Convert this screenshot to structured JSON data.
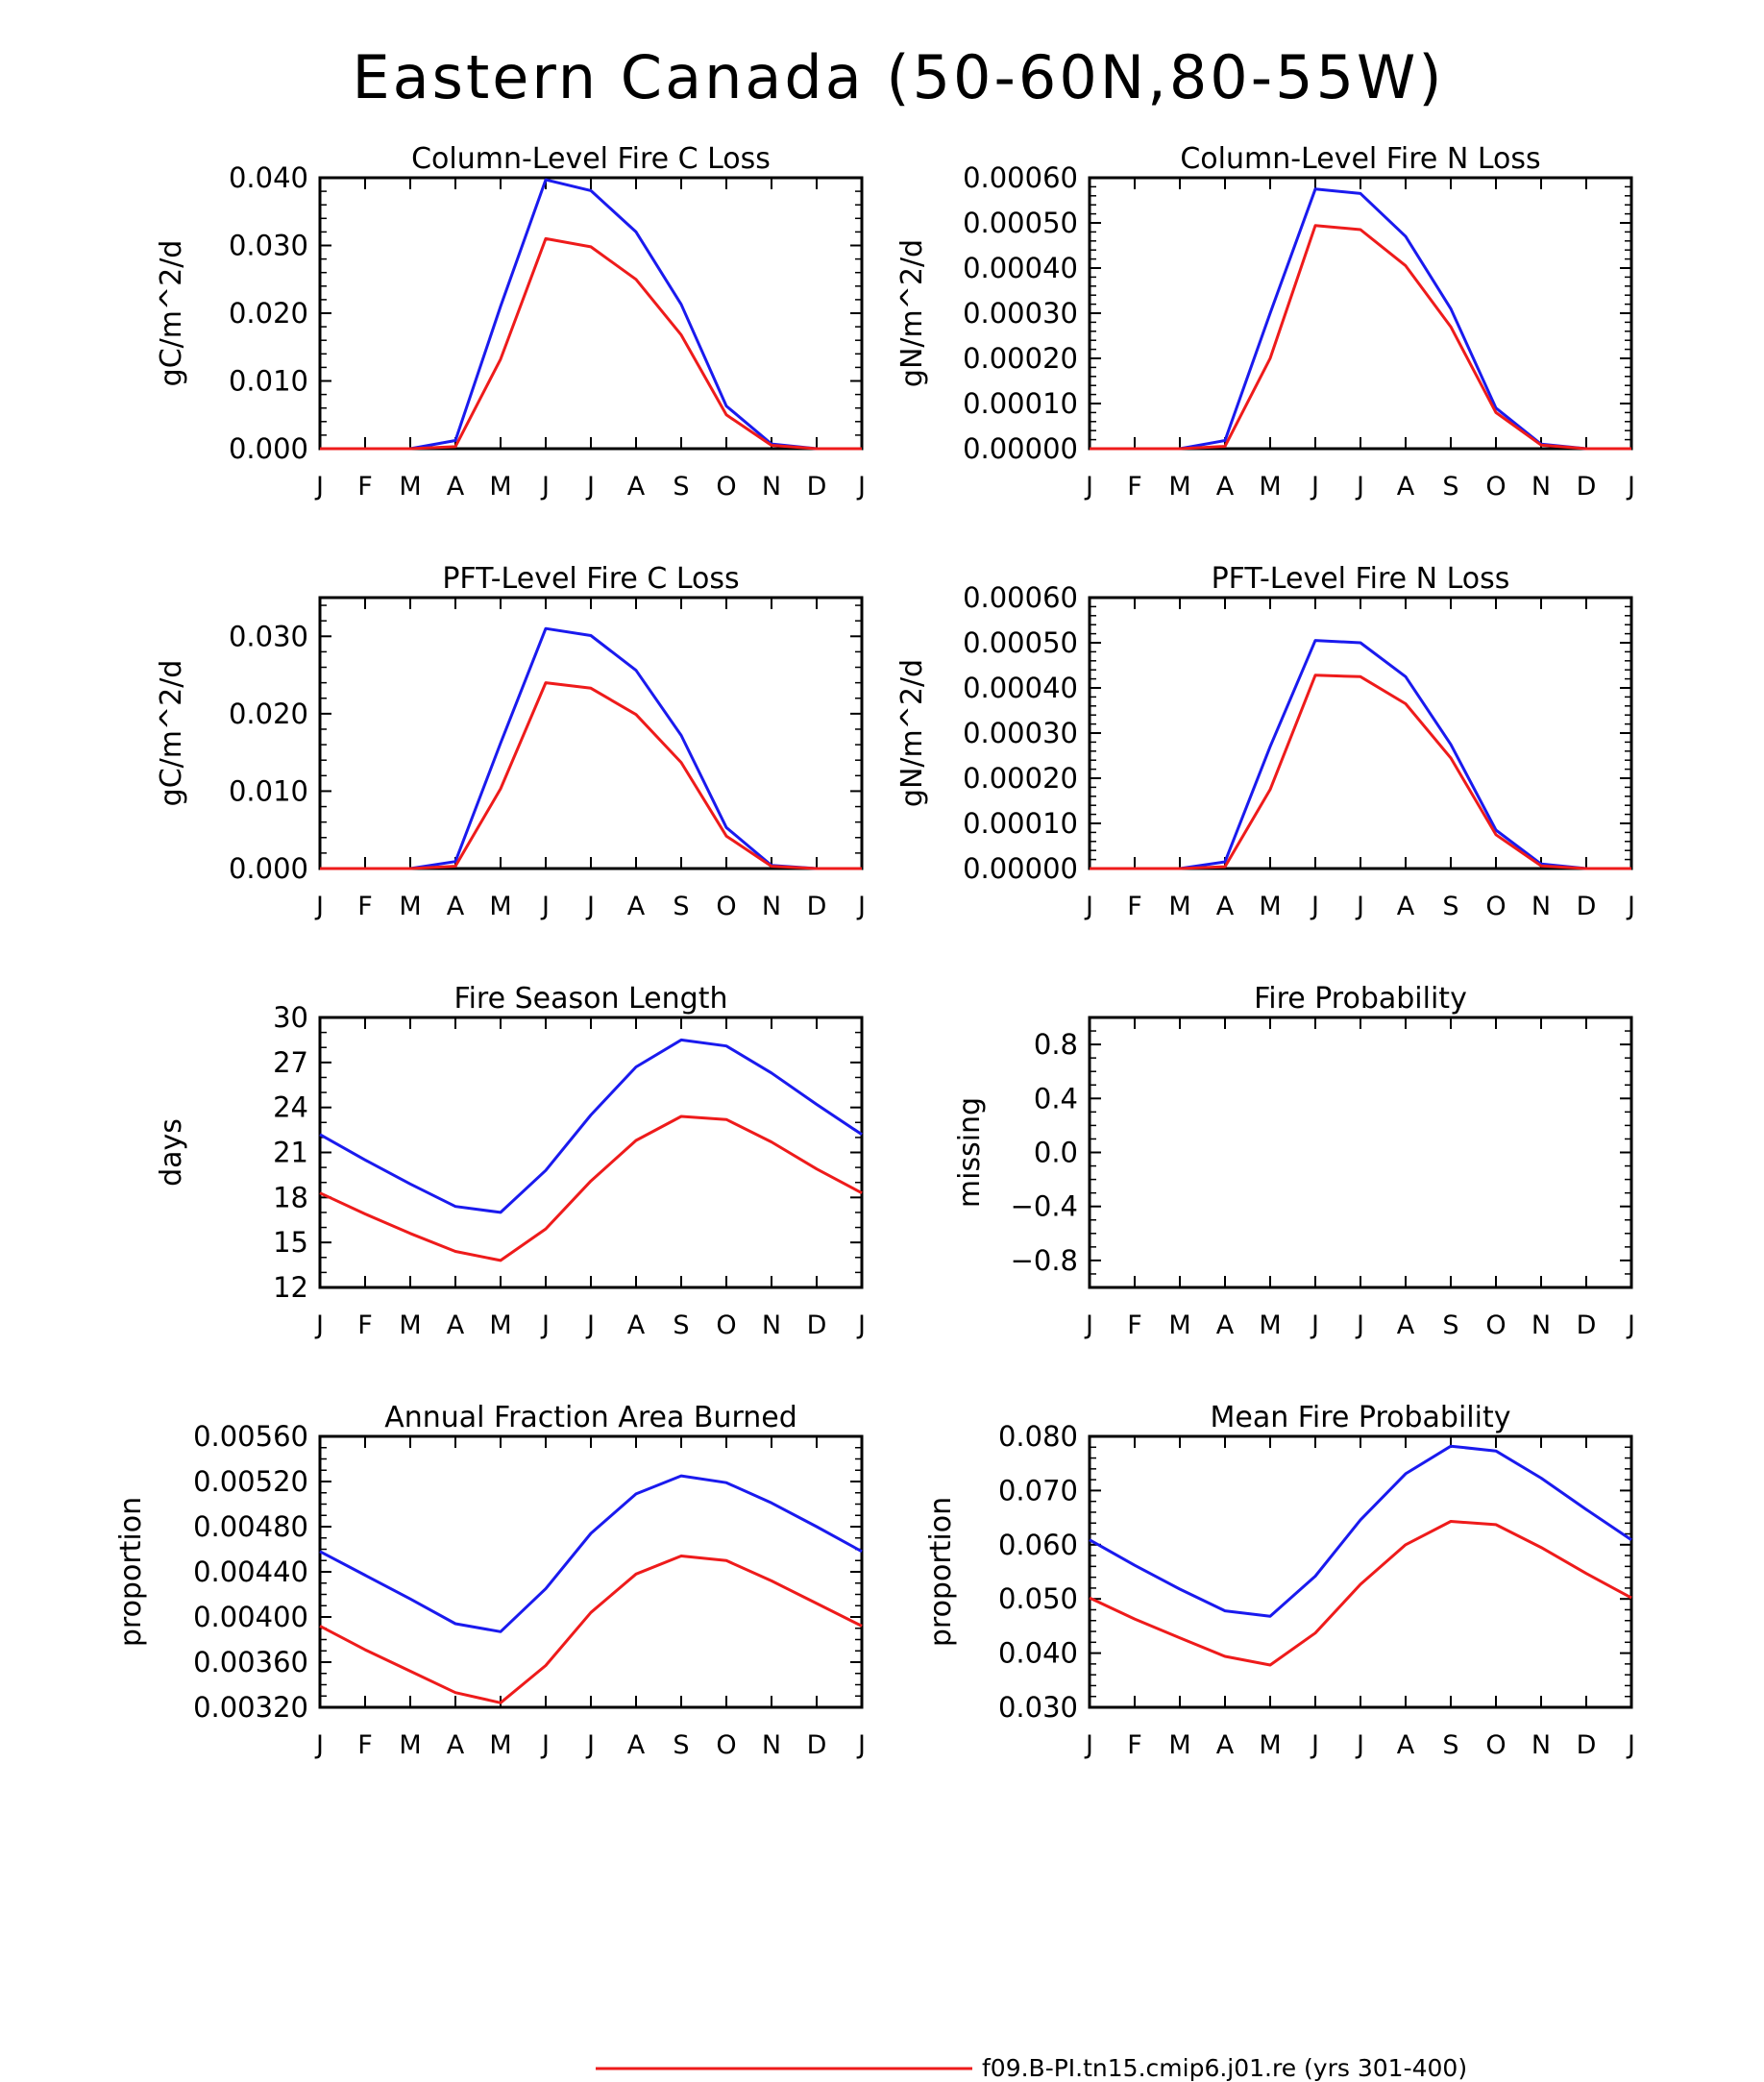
{
  "figure": {
    "title": "Eastern Canada (50-60N,80-55W)"
  },
  "legend": [
    {
      "label": "f09.B-PI.tn15.cmip6.j01.re (yrs 301-400)",
      "color": "#ee1b1b"
    }
  ],
  "colors": {
    "series_red": "#ee1b1b",
    "series_blue": "#1a1aee"
  },
  "chart_data": [
    {
      "id": "col-c",
      "type": "line",
      "title": "Column-Level Fire C Loss",
      "ylabel": "gC/m^2/d",
      "xlabel": "",
      "ylim": [
        0,
        0.04
      ],
      "yticks": [
        0,
        0.01,
        0.02,
        0.03,
        0.04
      ],
      "ytick_labels": [
        "0.000",
        "0.010",
        "0.020",
        "0.030",
        "0.040"
      ],
      "minor_per_major": 5,
      "categories": [
        "J",
        "F",
        "M",
        "A",
        "M",
        "J",
        "J",
        "A",
        "S",
        "O",
        "N",
        "D",
        "J"
      ],
      "series": [
        {
          "color": "#1a1aee",
          "values": [
            0,
            0,
            0,
            0.0012,
            0.021,
            0.0397,
            0.0381,
            0.032,
            0.0213,
            0.0063,
            0.0007,
            0,
            0
          ]
        },
        {
          "color": "#ee1b1b",
          "values": [
            0,
            0,
            0,
            0.0003,
            0.0132,
            0.031,
            0.0298,
            0.025,
            0.0168,
            0.005,
            0.0005,
            0,
            0
          ]
        }
      ]
    },
    {
      "id": "col-n",
      "type": "line",
      "title": "Column-Level Fire N Loss",
      "ylabel": "gN/m^2/d",
      "xlabel": "",
      "ylim": [
        0,
        0.0006
      ],
      "yticks": [
        0,
        0.0001,
        0.0002,
        0.0003,
        0.0004,
        0.0005,
        0.0006
      ],
      "ytick_labels": [
        "0.00000",
        "0.00010",
        "0.00020",
        "0.00030",
        "0.00040",
        "0.00050",
        "0.00060"
      ],
      "minor_per_major": 5,
      "categories": [
        "J",
        "F",
        "M",
        "A",
        "M",
        "J",
        "J",
        "A",
        "S",
        "O",
        "N",
        "D",
        "J"
      ],
      "series": [
        {
          "color": "#1a1aee",
          "values": [
            0,
            0,
            0,
            1.8e-05,
            0.0003,
            0.000575,
            0.000565,
            0.00047,
            0.00031,
            9e-05,
            1e-05,
            0,
            0
          ]
        },
        {
          "color": "#ee1b1b",
          "values": [
            0,
            0,
            0,
            5e-06,
            0.0002,
            0.000494,
            0.000485,
            0.000405,
            0.00027,
            8e-05,
            8e-06,
            0,
            0
          ]
        }
      ]
    },
    {
      "id": "pft-c",
      "type": "line",
      "title": "PFT-Level Fire C Loss",
      "ylabel": "gC/m^2/d",
      "xlabel": "",
      "ylim": [
        0,
        0.035
      ],
      "yticks": [
        0,
        0.01,
        0.02,
        0.03
      ],
      "ytick_labels": [
        "0.000",
        "0.010",
        "0.020",
        "0.030"
      ],
      "minor_per_major": 5,
      "categories": [
        "J",
        "F",
        "M",
        "A",
        "M",
        "J",
        "J",
        "A",
        "S",
        "O",
        "N",
        "D",
        "J"
      ],
      "series": [
        {
          "color": "#1a1aee",
          "values": [
            0,
            0,
            0,
            0.0009,
            0.0162,
            0.031,
            0.0301,
            0.0256,
            0.0172,
            0.0053,
            0.0004,
            0,
            0
          ]
        },
        {
          "color": "#ee1b1b",
          "values": [
            0,
            0,
            0,
            0.0003,
            0.0103,
            0.024,
            0.0233,
            0.0199,
            0.0137,
            0.0042,
            0.0003,
            0,
            0
          ]
        }
      ]
    },
    {
      "id": "pft-n",
      "type": "line",
      "title": "PFT-Level Fire N Loss",
      "ylabel": "gN/m^2/d",
      "xlabel": "",
      "ylim": [
        0,
        0.0006
      ],
      "yticks": [
        0,
        0.0001,
        0.0002,
        0.0003,
        0.0004,
        0.0005,
        0.0006
      ],
      "ytick_labels": [
        "0.00000",
        "0.00010",
        "0.00020",
        "0.00030",
        "0.00040",
        "0.00050",
        "0.00060"
      ],
      "minor_per_major": 5,
      "categories": [
        "J",
        "F",
        "M",
        "A",
        "M",
        "J",
        "J",
        "A",
        "S",
        "O",
        "N",
        "D",
        "J"
      ],
      "series": [
        {
          "color": "#1a1aee",
          "values": [
            0,
            0,
            0,
            1.5e-05,
            0.00027,
            0.000505,
            0.0005,
            0.000425,
            0.000275,
            8.5e-05,
            1e-05,
            0,
            0
          ]
        },
        {
          "color": "#ee1b1b",
          "values": [
            0,
            0,
            0,
            4e-06,
            0.000175,
            0.000428,
            0.000425,
            0.000365,
            0.000245,
            7.5e-05,
            6e-06,
            0,
            0
          ]
        }
      ]
    },
    {
      "id": "season",
      "type": "line",
      "title": "Fire Season Length",
      "ylabel": "days",
      "xlabel": "",
      "ylim": [
        12,
        30
      ],
      "yticks": [
        12,
        15,
        18,
        21,
        24,
        27,
        30
      ],
      "ytick_labels": [
        "12",
        "15",
        "18",
        "21",
        "24",
        "27",
        "30"
      ],
      "minor_per_major": 3,
      "categories": [
        "J",
        "F",
        "M",
        "A",
        "M",
        "J",
        "J",
        "A",
        "S",
        "O",
        "N",
        "D",
        "J"
      ],
      "series": [
        {
          "color": "#1a1aee",
          "values": [
            22.2,
            20.5,
            18.9,
            17.4,
            17.0,
            19.8,
            23.5,
            26.7,
            28.5,
            28.1,
            26.3,
            24.2,
            22.2
          ]
        },
        {
          "color": "#ee1b1b",
          "values": [
            18.3,
            16.9,
            15.6,
            14.4,
            13.8,
            15.9,
            19.1,
            21.8,
            23.4,
            23.2,
            21.7,
            19.9,
            18.3
          ]
        }
      ]
    },
    {
      "id": "prob",
      "type": "line",
      "title": "Fire Probability",
      "ylabel": "missing",
      "xlabel": "",
      "ylim": [
        -1,
        1
      ],
      "yticks": [
        -0.8,
        -0.4,
        0,
        0.4,
        0.8
      ],
      "ytick_labels": [
        "−0.8",
        "−0.4",
        "0.0",
        "0.4",
        "0.8"
      ],
      "minor_per_major": 4,
      "categories": [
        "J",
        "F",
        "M",
        "A",
        "M",
        "J",
        "J",
        "A",
        "S",
        "O",
        "N",
        "D",
        "J"
      ],
      "series": []
    },
    {
      "id": "area",
      "type": "line",
      "title": "Annual Fraction Area Burned",
      "ylabel": "proportion",
      "xlabel": "",
      "ylim": [
        0.0032,
        0.0056
      ],
      "yticks": [
        0.0032,
        0.0036,
        0.004,
        0.0044,
        0.0048,
        0.0052,
        0.0056
      ],
      "ytick_labels": [
        "0.00320",
        "0.00360",
        "0.00400",
        "0.00440",
        "0.00480",
        "0.00520",
        "0.00560"
      ],
      "minor_per_major": 4,
      "categories": [
        "J",
        "F",
        "M",
        "A",
        "M",
        "J",
        "J",
        "A",
        "S",
        "O",
        "N",
        "D",
        "J"
      ],
      "series": [
        {
          "color": "#1a1aee",
          "values": [
            0.00458,
            0.00437,
            0.00416,
            0.00394,
            0.00387,
            0.00425,
            0.00474,
            0.00509,
            0.00525,
            0.00519,
            0.00501,
            0.0048,
            0.00458
          ]
        },
        {
          "color": "#ee1b1b",
          "values": [
            0.00392,
            0.00371,
            0.00352,
            0.00333,
            0.00324,
            0.00357,
            0.00404,
            0.00438,
            0.00454,
            0.0045,
            0.00432,
            0.00412,
            0.00392
          ]
        }
      ]
    },
    {
      "id": "mean-prob",
      "type": "line",
      "title": "Mean Fire Probability",
      "ylabel": "proportion",
      "xlabel": "",
      "ylim": [
        0.03,
        0.08
      ],
      "yticks": [
        0.03,
        0.04,
        0.05,
        0.06,
        0.07,
        0.08
      ],
      "ytick_labels": [
        "0.030",
        "0.040",
        "0.050",
        "0.060",
        "0.070",
        "0.080"
      ],
      "minor_per_major": 5,
      "categories": [
        "J",
        "F",
        "M",
        "A",
        "M",
        "J",
        "J",
        "A",
        "S",
        "O",
        "N",
        "D",
        "J"
      ],
      "series": [
        {
          "color": "#1a1aee",
          "values": [
            0.0609,
            0.0562,
            0.0518,
            0.0478,
            0.0468,
            0.0542,
            0.0646,
            0.0731,
            0.0782,
            0.0773,
            0.0723,
            0.0665,
            0.0609
          ]
        },
        {
          "color": "#ee1b1b",
          "values": [
            0.0502,
            0.0463,
            0.0428,
            0.0394,
            0.0378,
            0.0437,
            0.0527,
            0.06,
            0.0643,
            0.0637,
            0.0595,
            0.0547,
            0.0502
          ]
        }
      ]
    }
  ]
}
